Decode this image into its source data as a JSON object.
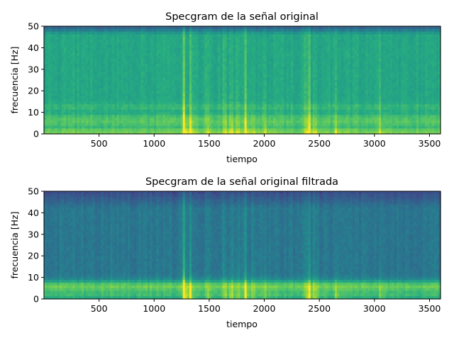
{
  "chart_data": [
    {
      "type": "heatmap",
      "title": "Specgram de la señal original",
      "xlabel": "tiempo",
      "ylabel": "frecuencia [Hz]",
      "xlim": [
        0,
        3600
      ],
      "ylim": [
        0,
        50
      ],
      "xticks": [
        500,
        1000,
        1500,
        2000,
        2500,
        3000,
        3500
      ],
      "yticks": [
        0,
        10,
        20,
        30,
        40,
        50
      ],
      "grid": false,
      "colormap": "viridis",
      "events": [
        {
          "time": 1270,
          "strength": 1.0
        },
        {
          "time": 1330,
          "strength": 0.5
        },
        {
          "time": 1480,
          "strength": 0.35
        },
        {
          "time": 1640,
          "strength": 0.45
        },
        {
          "time": 1700,
          "strength": 0.5
        },
        {
          "time": 1760,
          "strength": 0.35
        },
        {
          "time": 1830,
          "strength": 0.55
        },
        {
          "time": 1900,
          "strength": 0.3
        },
        {
          "time": 2000,
          "strength": 0.35
        },
        {
          "time": 2380,
          "strength": 0.45
        },
        {
          "time": 2410,
          "strength": 0.55
        },
        {
          "time": 2460,
          "strength": 0.4
        },
        {
          "time": 2650,
          "strength": 0.3
        },
        {
          "time": 3050,
          "strength": 0.25
        }
      ],
      "bands": [
        {
          "freq": 1,
          "strength": 0.55
        },
        {
          "freq": 5,
          "strength": 0.35
        },
        {
          "freq": 7.5,
          "strength": 0.3
        },
        {
          "freq": 12.5,
          "strength": 0.2
        }
      ]
    },
    {
      "type": "heatmap",
      "title": "Specgram de la señal original filtrada",
      "xlabel": "tiempo",
      "ylabel": "frecuencia [Hz]",
      "xlim": [
        0,
        3600
      ],
      "ylim": [
        0,
        50
      ],
      "xticks": [
        500,
        1000,
        1500,
        2000,
        2500,
        3000,
        3500
      ],
      "yticks": [
        0,
        10,
        20,
        30,
        40,
        50
      ],
      "grid": false,
      "colormap": "viridis",
      "events": [
        {
          "time": 1270,
          "strength": 1.0
        },
        {
          "time": 1330,
          "strength": 0.5
        },
        {
          "time": 1480,
          "strength": 0.35
        },
        {
          "time": 1640,
          "strength": 0.45
        },
        {
          "time": 1700,
          "strength": 0.5
        },
        {
          "time": 1760,
          "strength": 0.35
        },
        {
          "time": 1830,
          "strength": 0.55
        },
        {
          "time": 1900,
          "strength": 0.3
        },
        {
          "time": 2000,
          "strength": 0.35
        },
        {
          "time": 2380,
          "strength": 0.45
        },
        {
          "time": 2410,
          "strength": 0.55
        },
        {
          "time": 2460,
          "strength": 0.4
        },
        {
          "time": 2650,
          "strength": 0.3
        },
        {
          "time": 3050,
          "strength": 0.25
        }
      ],
      "bands": [
        {
          "freq": 2,
          "strength": 0.45
        },
        {
          "freq": 5,
          "strength": 0.6
        },
        {
          "freq": 7,
          "strength": 0.55
        }
      ]
    }
  ]
}
